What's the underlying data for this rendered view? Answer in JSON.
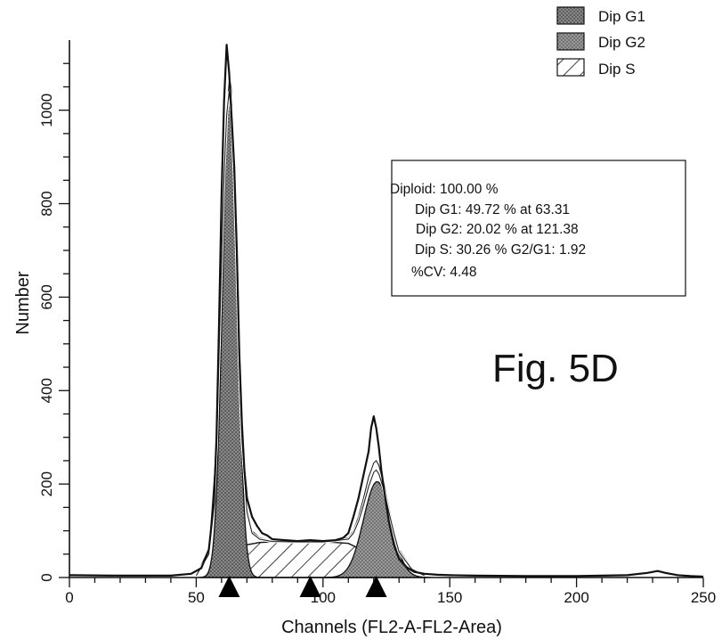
{
  "chart_data": {
    "type": "area",
    "xlabel": "Channels  (FL2-A-FL2-Area)",
    "ylabel": "Number",
    "xlim": [
      0,
      250
    ],
    "ylim": [
      0,
      1150
    ],
    "x_ticks": [
      0,
      50,
      100,
      150,
      200,
      250
    ],
    "y_ticks": [
      0,
      200,
      400,
      600,
      800,
      1000
    ],
    "x_tick_labels": [
      "0",
      "50",
      "100",
      "150",
      "200",
      "250"
    ],
    "y_tick_labels": [
      "0",
      "200",
      "400",
      "600",
      "800",
      "1000"
    ],
    "grid": false,
    "legend_position": "top-right",
    "legend": [
      {
        "label": "Dip G1",
        "pattern": "dense-dots",
        "color": "#6a6a6a"
      },
      {
        "label": "Dip G2",
        "pattern": "dense-dots",
        "color": "#8a8a8a"
      },
      {
        "label": "Dip S",
        "pattern": "diagonal-hatch",
        "color": "#ffffff"
      }
    ],
    "stats_box": {
      "line1": "Diploid: 100.00  %",
      "line2": "Dip G1: 49.72 % at 63.31",
      "line3": "Dip G2: 20.02 % at 121.38",
      "line4": "Dip S: 30.26 %    G2/G1: 1.92",
      "line5": "%CV: 4.48"
    },
    "figure_label": "Fig. 5D",
    "markers_x": [
      63,
      95,
      121
    ],
    "series": [
      {
        "name": "Dip G1",
        "mean": 63.31,
        "sd": 2.84,
        "peak": 1060
      },
      {
        "name": "Dip G2",
        "mean": 121.38,
        "sd": 5.4,
        "peak": 205
      },
      {
        "name": "Dip S",
        "x": [
          63,
          66,
          70,
          75,
          80,
          85,
          90,
          95,
          100,
          105,
          110,
          115,
          121
        ],
        "values": [
          0,
          40,
          70,
          75,
          76,
          76,
          77,
          76,
          76,
          75,
          73,
          60,
          0
        ]
      }
    ],
    "histogram": {
      "x": [
        0,
        20,
        40,
        48,
        52,
        55,
        57,
        58,
        59,
        60,
        61,
        62,
        63,
        64,
        65,
        66,
        67,
        68,
        69,
        70,
        72,
        74,
        76,
        78,
        80,
        85,
        90,
        95,
        100,
        105,
        108,
        110,
        112,
        114,
        116,
        118,
        119,
        120,
        121,
        122,
        123,
        124,
        126,
        128,
        130,
        133,
        136,
        140,
        145,
        150,
        160,
        180,
        200,
        220,
        228,
        232,
        235,
        240,
        245,
        250
      ],
      "values": [
        5,
        4,
        4,
        8,
        20,
        60,
        160,
        300,
        540,
        820,
        1020,
        1140,
        1080,
        980,
        880,
        700,
        480,
        330,
        230,
        170,
        130,
        110,
        95,
        90,
        82,
        80,
        78,
        80,
        78,
        80,
        85,
        95,
        130,
        170,
        220,
        270,
        320,
        345,
        320,
        280,
        230,
        190,
        120,
        70,
        40,
        22,
        12,
        8,
        6,
        5,
        4,
        3,
        3,
        5,
        10,
        14,
        10,
        5,
        3,
        2
      ]
    },
    "fit_envelopes": [
      {
        "x": [
          50,
          55,
          58,
          60,
          61,
          62,
          63,
          64,
          65,
          66,
          67,
          68,
          70,
          72,
          75,
          80,
          90,
          100,
          110,
          112,
          114,
          116,
          118,
          120,
          121,
          122,
          124,
          126,
          128,
          130,
          135,
          140
        ],
        "values": [
          5,
          60,
          300,
          700,
          880,
          1000,
          1060,
          1010,
          880,
          690,
          480,
          310,
          150,
          100,
          85,
          78,
          77,
          77,
          85,
          100,
          130,
          170,
          215,
          245,
          250,
          240,
          200,
          150,
          100,
          60,
          20,
          5
        ]
      },
      {
        "x": [
          50,
          55,
          58,
          60,
          61,
          62,
          63,
          64,
          65,
          66,
          67,
          68,
          70,
          72,
          75,
          80,
          90,
          100,
          110,
          112,
          114,
          116,
          118,
          120,
          121,
          122,
          124,
          126,
          128,
          130,
          135,
          140
        ],
        "values": [
          4,
          50,
          280,
          680,
          860,
          990,
          1040,
          990,
          860,
          670,
          460,
          300,
          140,
          95,
          82,
          77,
          76,
          76,
          82,
          95,
          120,
          155,
          195,
          225,
          230,
          222,
          188,
          140,
          95,
          55,
          18,
          4
        ]
      }
    ]
  }
}
